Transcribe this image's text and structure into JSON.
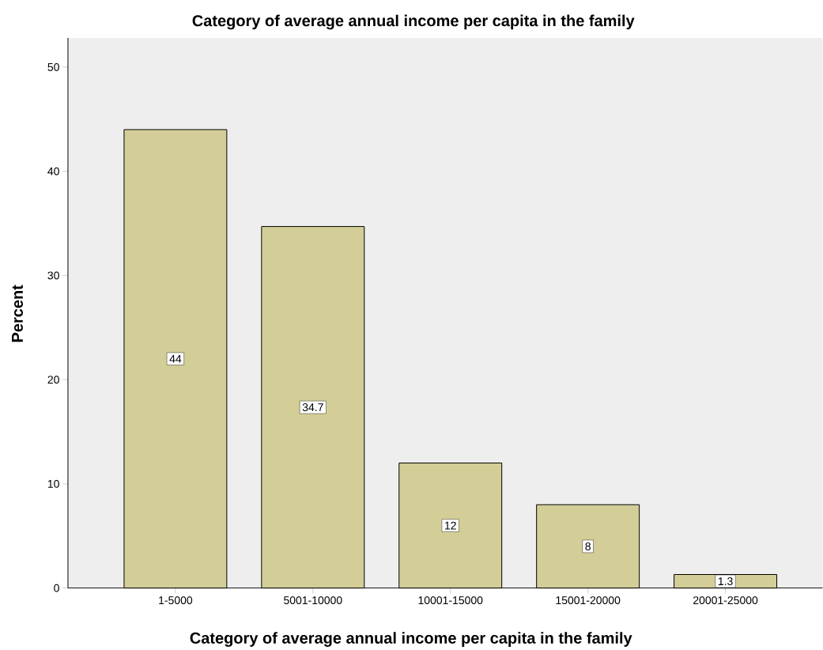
{
  "chart_data": {
    "type": "bar",
    "title": "Category of average annual income per capita in the family",
    "xlabel": "Category of average annual income per capita in the family",
    "ylabel": "Percent",
    "categories": [
      "1-5000",
      "5001-10000",
      "10001-15000",
      "15001-20000",
      "20001-25000"
    ],
    "values": [
      44,
      34.7,
      12,
      8,
      1.3
    ],
    "color": "#d3ce97",
    "data_labels": true,
    "ylim": [
      0,
      52.8
    ],
    "yticks": [
      0,
      10,
      20,
      30,
      40,
      50
    ],
    "grid": false
  }
}
